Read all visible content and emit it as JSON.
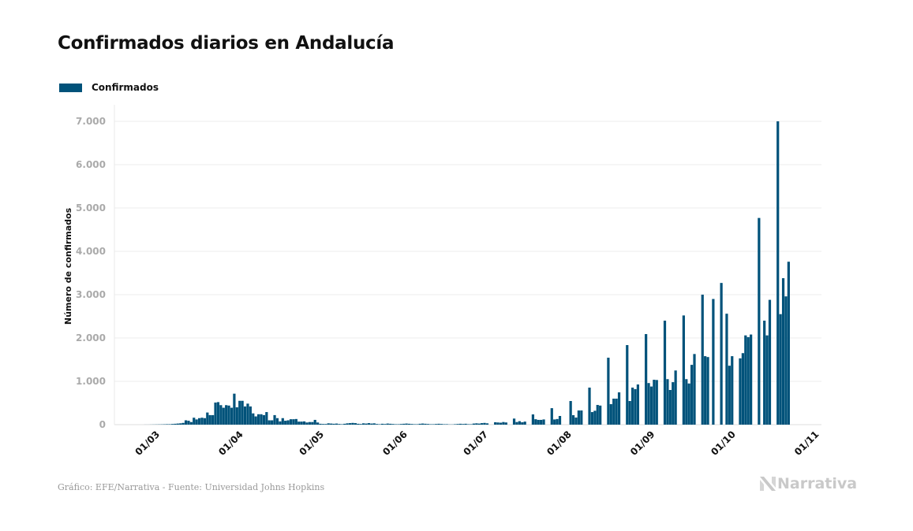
{
  "chart_data": {
    "type": "bar",
    "title": "Confirmados diarios en Andalucía",
    "ylabel": "Número de confirmados",
    "xlabel": "",
    "ylim": [
      0,
      7000
    ],
    "yticks": [
      0,
      1000,
      2000,
      3000,
      4000,
      5000,
      6000,
      7000
    ],
    "ytick_labels": [
      "0",
      "1.000",
      "2.000",
      "3.000",
      "4.000",
      "5.000",
      "6.000",
      "7.000"
    ],
    "xtick_labels": [
      "01/03",
      "01/04",
      "01/05",
      "01/06",
      "01/07",
      "01/08",
      "01/09",
      "01/10",
      "01/11"
    ],
    "grid": "horizontal",
    "legend_position": "top-left",
    "bar_color": "#00527a",
    "series": [
      {
        "name": "Confirmados",
        "daily_by_month": [
          {
            "month": 2,
            "first_day": 27,
            "values": [
              1,
              1,
              2
            ]
          },
          {
            "month": 3,
            "first_day": 1,
            "values": [
              3,
              4,
              5,
              6,
              8,
              10,
              10,
              15,
              20,
              25,
              30,
              40,
              100,
              90,
              60,
              160,
              120,
              150,
              160,
              150,
              280,
              220,
              220,
              510,
              520,
              450,
              390,
              450,
              440,
              390,
              715
            ]
          },
          {
            "month": 4,
            "first_day": 1,
            "values": [
              400,
              550,
              550,
              420,
              485,
              420,
              260,
              190,
              240,
              240,
              220,
              290,
              100,
              100,
              220,
              150,
              75,
              150,
              90,
              100,
              125,
              125,
              130,
              70,
              70,
              75,
              50,
              60,
              60,
              110
            ]
          },
          {
            "month": 5,
            "first_day": 1,
            "values": [
              50,
              20,
              15,
              15,
              30,
              25,
              20,
              25,
              15,
              10,
              20,
              30,
              35,
              40,
              35,
              20,
              15,
              30,
              25,
              35,
              25,
              30,
              15,
              10,
              20,
              15,
              25,
              20,
              15,
              10,
              10
            ]
          },
          {
            "month": 6,
            "first_day": 1,
            "values": [
              15,
              20,
              25,
              20,
              15,
              10,
              10,
              20,
              25,
              20,
              15,
              10,
              10,
              15,
              20,
              15,
              10,
              10,
              5,
              5,
              10,
              15,
              20,
              15,
              20,
              10,
              10,
              25,
              30,
              25
            ]
          },
          {
            "month": 7,
            "first_day": 1,
            "values": [
              35,
              40,
              30,
              0,
              0,
              55,
              50,
              45,
              60,
              50,
              0,
              0,
              140,
              60,
              80,
              55,
              70,
              0,
              0,
              236,
              125,
              110,
              110,
              120,
              0,
              0,
              380,
              120,
              130,
              200,
              0
            ]
          },
          {
            "month": 8,
            "first_day": 1,
            "values": [
              0,
              0,
              545,
              218,
              164,
              327,
              327,
              0,
              0,
              855,
              290,
              320,
              455,
              440,
              0,
              0,
              1545,
              473,
              600,
              600,
              745,
              0,
              0,
              1836,
              545,
              855,
              820,
              927,
              0,
              0,
              2090
            ]
          },
          {
            "month": 9,
            "first_day": 1,
            "values": [
              960,
              880,
              1036,
              1030,
              0,
              0,
              2400,
              1050,
              800,
              980,
              1250,
              0,
              0,
              2520,
              1050,
              950,
              1380,
              1630,
              0,
              0,
              3000,
              1580,
              1560,
              0,
              2900,
              0,
              0,
              3270,
              0,
              2560
            ]
          },
          {
            "month": 10,
            "first_day": 1,
            "values": [
              1360,
              1580,
              0,
              0,
              1530,
              1650,
              2060,
              2020,
              2080,
              0,
              0,
              4770,
              0,
              2400,
              2060,
              2880,
              0,
              0,
              7000,
              2550,
              3380,
              2960,
              3760
            ]
          }
        ]
      }
    ]
  },
  "legend": {
    "label": "Confirmados"
  },
  "footer": {
    "source": "Gráfico: EFE/Narrativa - Fuente: Universidad Johns Hopkins",
    "logo_text": "Narrativa"
  }
}
